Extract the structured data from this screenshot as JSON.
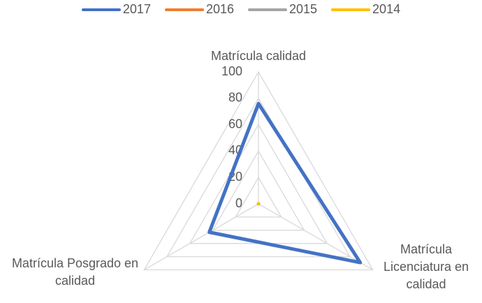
{
  "chart_data": {
    "type": "radar",
    "categories": [
      "Matrícula calidad",
      "Matrícula Licenciatura en calidad",
      "Matrícula Posgrado en calidad"
    ],
    "series": [
      {
        "name": "2017",
        "color": "#4472c4",
        "values": [
          76,
          89,
          43
        ]
      },
      {
        "name": "2016",
        "color": "#ed7d31",
        "values": [
          0,
          0,
          0
        ]
      },
      {
        "name": "2015",
        "color": "#a5a5a5",
        "values": [
          0,
          0,
          0
        ]
      },
      {
        "name": "2014",
        "color": "#ffc000",
        "values": [
          0,
          0,
          0
        ]
      }
    ],
    "ylim": [
      0,
      100
    ],
    "yticks": [
      0,
      20,
      40,
      60,
      80,
      100
    ],
    "grid": true,
    "legend": "top"
  }
}
